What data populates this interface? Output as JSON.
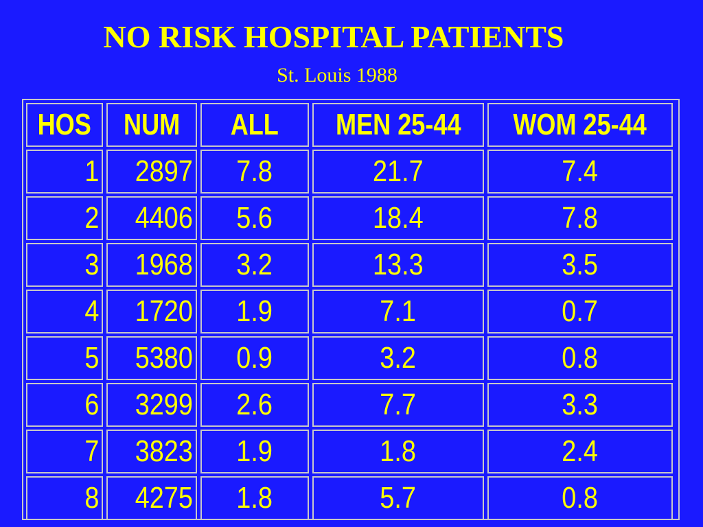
{
  "slide": {
    "title": "NO RISK HOSPITAL PATIENTS",
    "subtitle": "St. Louis 1988"
  },
  "table": {
    "headers": [
      "HOS",
      "NUM",
      "ALL",
      "MEN 25-44",
      "WOM 25-44"
    ],
    "rows": [
      [
        "1",
        "2897",
        "7.8",
        "21.7",
        "7.4"
      ],
      [
        "2",
        "4406",
        "5.6",
        "18.4",
        "7.8"
      ],
      [
        "3",
        "1968",
        "3.2",
        "13.3",
        "3.5"
      ],
      [
        "4",
        "1720",
        "1.9",
        "7.1",
        "0.7"
      ],
      [
        "5",
        "5380",
        "0.9",
        "3.2",
        "0.8"
      ],
      [
        "6",
        "3299",
        "2.6",
        "7.7",
        "3.3"
      ],
      [
        "7",
        "3823",
        "1.9",
        "1.8",
        "2.4"
      ],
      [
        "8",
        "4275",
        "1.8",
        "5.7",
        "0.8"
      ]
    ]
  },
  "colors": {
    "background": "#1a1aff",
    "text": "#ffff00",
    "border": "#c8c8c8"
  }
}
